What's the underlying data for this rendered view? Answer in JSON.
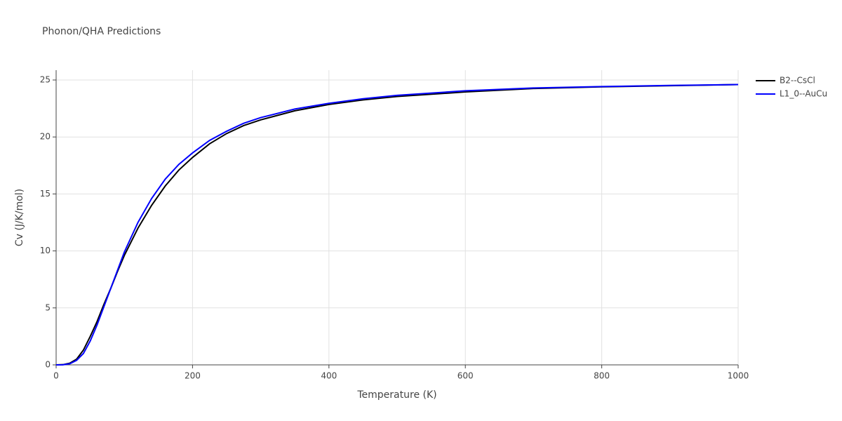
{
  "chart_data": {
    "type": "line",
    "title": "Phonon/QHA Predictions",
    "x_label": "Temperature (K)",
    "y_label": "Cv (J/K/mol)",
    "x": [
      0,
      10,
      20,
      30,
      40,
      50,
      60,
      70,
      80,
      90,
      100,
      120,
      140,
      160,
      180,
      200,
      225,
      250,
      275,
      300,
      350,
      400,
      450,
      500,
      600,
      700,
      800,
      900,
      1000
    ],
    "series": [
      {
        "name": "B2--CsCl",
        "color": "#000000",
        "values": [
          0,
          0.02,
          0.15,
          0.5,
          1.3,
          2.5,
          3.8,
          5.3,
          6.7,
          8.2,
          9.6,
          12.0,
          14.0,
          15.7,
          17.1,
          18.2,
          19.4,
          20.3,
          21.0,
          21.5,
          22.3,
          22.85,
          23.25,
          23.55,
          23.95,
          24.25,
          24.4,
          24.5,
          24.6
        ]
      },
      {
        "name": "L1_0--AuCu",
        "color": "#0000ff",
        "values": [
          0,
          0.01,
          0.1,
          0.4,
          1.0,
          2.1,
          3.5,
          5.1,
          6.7,
          8.3,
          9.9,
          12.5,
          14.6,
          16.3,
          17.6,
          18.6,
          19.7,
          20.5,
          21.2,
          21.7,
          22.45,
          22.95,
          23.35,
          23.65,
          24.05,
          24.3,
          24.42,
          24.52,
          24.6
        ]
      }
    ],
    "xlim": [
      0,
      1000
    ],
    "xticks": [
      0,
      200,
      400,
      600,
      800,
      1000
    ],
    "ylim": [
      0,
      25
    ],
    "yticks": [
      0,
      5,
      10,
      15,
      20,
      25
    ],
    "grid": true,
    "legend": "top-right"
  }
}
